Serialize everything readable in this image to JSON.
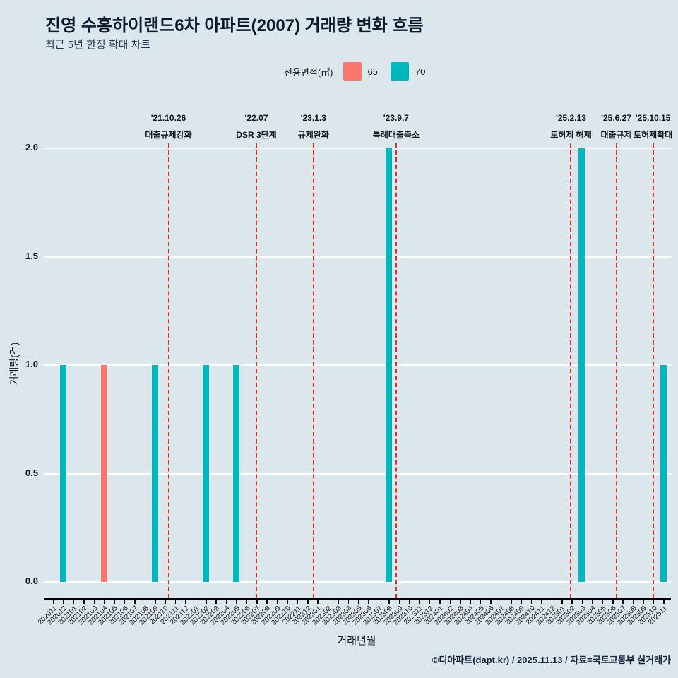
{
  "header": {
    "title": "진영 수홍하이랜드6차 아파트(2007) 거래량 변화 흐름",
    "subtitle": "최근 5년 한정 확대 차트"
  },
  "legend": {
    "label": "전용면적(㎡)"
  },
  "footer": {
    "credit": "©디아파트(dapt.kr) / 2025.11.13 / 자료=국토교통부 실거래가"
  },
  "colors": {
    "background": "#dce7ed",
    "grid": "#ffffff",
    "axis": "#000000",
    "event_line": "#e0301e",
    "series_65": "#f8766d",
    "series_70": "#00b7bd"
  },
  "chart_data": {
    "type": "bar",
    "title": "진영 수홍하이랜드6차 아파트(2007) 거래량 변화 흐름",
    "subtitle": "최근 5년 한정 확대 차트",
    "xlabel": "거래년월",
    "ylabel": "거래량(건)",
    "ylim": [
      0,
      2
    ],
    "yticks": [
      0.0,
      0.5,
      1.0,
      1.5,
      2.0
    ],
    "grid": true,
    "legend_position": "top",
    "categories": [
      "202011",
      "202012",
      "202101",
      "202102",
      "202103",
      "202104",
      "202105",
      "202106",
      "202107",
      "202108",
      "202109",
      "202110",
      "202111",
      "202112",
      "202201",
      "202202",
      "202203",
      "202204",
      "202205",
      "202206",
      "202207",
      "202208",
      "202209",
      "202210",
      "202211",
      "202212",
      "202301",
      "202302",
      "202303",
      "202304",
      "202305",
      "202306",
      "202307",
      "202308",
      "202309",
      "202310",
      "202311",
      "202312",
      "202401",
      "202402",
      "202403",
      "202404",
      "202405",
      "202406",
      "202407",
      "202408",
      "202409",
      "202410",
      "202411",
      "202412",
      "202501",
      "202502",
      "202503",
      "202504",
      "202505",
      "202506",
      "202507",
      "202508",
      "202509",
      "202510",
      "202511"
    ],
    "series": [
      {
        "name": "65",
        "color": "#f8766d",
        "bars": [
          {
            "month": "202104",
            "value": 1
          }
        ]
      },
      {
        "name": "70",
        "color": "#00b7bd",
        "bars": [
          {
            "month": "202012",
            "value": 1
          },
          {
            "month": "202109",
            "value": 1
          },
          {
            "month": "202202",
            "value": 1
          },
          {
            "month": "202205",
            "value": 1
          },
          {
            "month": "202308",
            "value": 2
          },
          {
            "month": "202503",
            "value": 2
          },
          {
            "month": "202511",
            "value": 1
          }
        ]
      }
    ],
    "events": [
      {
        "date": "'21.10.26",
        "label": "대출규제강화",
        "month": "202110",
        "day": 26
      },
      {
        "date": "'22.07",
        "label": "DSR 3단계",
        "month": "202207",
        "day": null
      },
      {
        "date": "'23.1.3",
        "label": "규제완화",
        "month": "202301",
        "day": 3
      },
      {
        "date": "'23.9.7",
        "label": "특례대출축소",
        "month": "202309",
        "day": 7
      },
      {
        "date": "'25.2.13",
        "label": "토허제 해제",
        "month": "202502",
        "day": 13
      },
      {
        "date": "'25.6.27",
        "label": "대출규제",
        "month": "202506",
        "day": 27
      },
      {
        "date": "'25.10.15",
        "label": "토허제확대",
        "month": "202510",
        "day": 15
      }
    ]
  }
}
